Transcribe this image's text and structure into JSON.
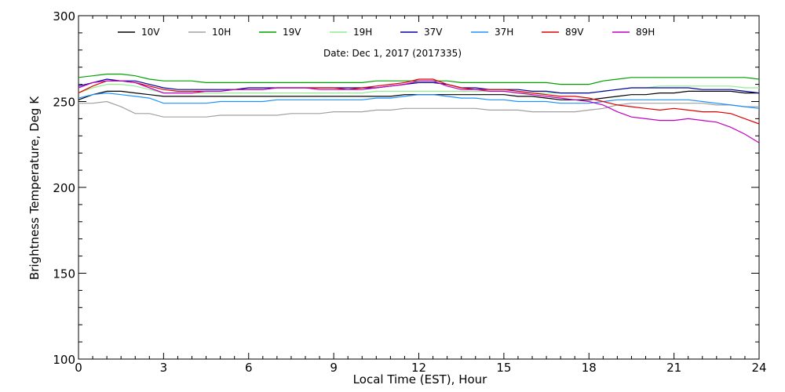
{
  "chart_data": {
    "type": "line",
    "title": "",
    "annotation": "Date: Dec  1, 2017 (2017335)",
    "xlabel": "Local Time (EST), Hour",
    "ylabel": "Brightness Temperature, Deg  K",
    "xlim": [
      0,
      24
    ],
    "ylim": [
      100,
      300
    ],
    "xticks": [
      0,
      3,
      6,
      9,
      12,
      15,
      18,
      21,
      24
    ],
    "yticks": [
      100,
      150,
      200,
      250,
      300
    ],
    "grid": false,
    "legend_position": "top",
    "x": [
      0,
      0.5,
      1,
      1.5,
      2,
      2.5,
      3,
      3.5,
      4,
      4.5,
      5,
      5.5,
      6,
      6.5,
      7,
      7.5,
      8,
      8.5,
      9,
      9.5,
      10,
      10.5,
      11,
      11.5,
      12,
      12.5,
      13,
      13.5,
      14,
      14.5,
      15,
      15.5,
      16,
      16.5,
      17,
      17.5,
      18,
      18.5,
      19,
      19.5,
      20,
      20.5,
      21,
      21.5,
      22,
      22.5,
      23,
      23.5,
      24
    ],
    "series": [
      {
        "name": "10V",
        "color": "#000000",
        "values": [
          251,
          254,
          256,
          256,
          255,
          254,
          253,
          253,
          253,
          253,
          253,
          253,
          253,
          253,
          253,
          253,
          253,
          253,
          253,
          253,
          253,
          253,
          253,
          254,
          254,
          254,
          254,
          254,
          254,
          254,
          254,
          253,
          253,
          252,
          251,
          251,
          251,
          252,
          253,
          254,
          254,
          255,
          255,
          256,
          256,
          256,
          256,
          255,
          255
        ]
      },
      {
        "name": "10H",
        "color": "#a0a0a0",
        "values": [
          249,
          249,
          250,
          247,
          243,
          243,
          241,
          241,
          241,
          241,
          242,
          242,
          242,
          242,
          242,
          243,
          243,
          243,
          244,
          244,
          244,
          245,
          245,
          246,
          246,
          246,
          246,
          246,
          246,
          245,
          245,
          245,
          244,
          244,
          244,
          244,
          245,
          246,
          248,
          249,
          249,
          249,
          249,
          249,
          249,
          248,
          248,
          247,
          247
        ]
      },
      {
        "name": "19V",
        "color": "#00a000",
        "values": [
          264,
          265,
          266,
          266,
          265,
          263,
          262,
          262,
          262,
          261,
          261,
          261,
          261,
          261,
          261,
          261,
          261,
          261,
          261,
          261,
          261,
          262,
          262,
          262,
          262,
          262,
          262,
          261,
          261,
          261,
          261,
          261,
          261,
          261,
          260,
          260,
          260,
          262,
          263,
          264,
          264,
          264,
          264,
          264,
          264,
          264,
          264,
          264,
          263
        ]
      },
      {
        "name": "19H",
        "color": "#90ee90",
        "values": [
          255,
          258,
          260,
          260,
          259,
          257,
          255,
          255,
          255,
          255,
          255,
          255,
          255,
          255,
          255,
          255,
          255,
          255,
          255,
          255,
          255,
          256,
          256,
          256,
          256,
          256,
          256,
          256,
          256,
          256,
          256,
          255,
          255,
          255,
          255,
          255,
          255,
          256,
          257,
          258,
          258,
          259,
          259,
          259,
          259,
          259,
          259,
          258,
          258
        ]
      },
      {
        "name": "37V",
        "color": "#0000a0",
        "values": [
          259,
          261,
          263,
          262,
          262,
          260,
          258,
          257,
          257,
          257,
          257,
          257,
          258,
          258,
          258,
          258,
          258,
          258,
          258,
          258,
          258,
          258,
          259,
          260,
          261,
          261,
          260,
          258,
          258,
          257,
          257,
          257,
          256,
          256,
          255,
          255,
          255,
          256,
          257,
          258,
          258,
          258,
          258,
          258,
          257,
          257,
          257,
          256,
          255
        ]
      },
      {
        "name": "37H",
        "color": "#1e90ff",
        "values": [
          252,
          254,
          255,
          254,
          253,
          252,
          249,
          249,
          249,
          249,
          250,
          250,
          250,
          250,
          251,
          251,
          251,
          251,
          251,
          251,
          251,
          252,
          252,
          253,
          254,
          254,
          253,
          252,
          252,
          251,
          251,
          250,
          250,
          250,
          249,
          249,
          249,
          250,
          251,
          251,
          251,
          251,
          251,
          251,
          250,
          249,
          248,
          247,
          246
        ]
      },
      {
        "name": "89V",
        "color": "#e00000",
        "values": [
          255,
          259,
          262,
          262,
          261,
          259,
          257,
          256,
          256,
          256,
          256,
          257,
          257,
          257,
          258,
          258,
          258,
          258,
          258,
          257,
          258,
          259,
          260,
          261,
          263,
          263,
          260,
          258,
          257,
          257,
          257,
          256,
          255,
          254,
          253,
          253,
          252,
          250,
          248,
          247,
          246,
          245,
          246,
          245,
          244,
          244,
          243,
          240,
          237
        ]
      },
      {
        "name": "89H",
        "color": "#c000c0",
        "values": [
          258,
          261,
          262,
          262,
          261,
          258,
          255,
          255,
          255,
          256,
          256,
          257,
          257,
          257,
          258,
          258,
          258,
          257,
          257,
          257,
          257,
          258,
          259,
          260,
          262,
          262,
          259,
          257,
          257,
          256,
          256,
          255,
          254,
          253,
          252,
          251,
          250,
          248,
          244,
          241,
          240,
          239,
          239,
          240,
          239,
          238,
          235,
          231,
          226
        ]
      }
    ]
  }
}
